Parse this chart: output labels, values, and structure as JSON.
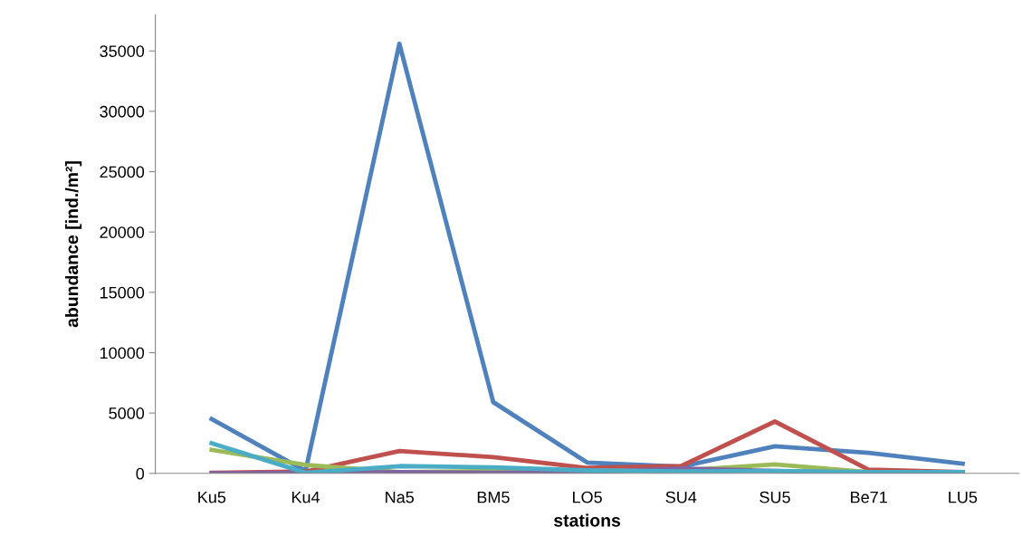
{
  "chart_data": {
    "type": "line",
    "xlabel": "stations",
    "ylabel": "abundance [ind./m²]",
    "categories": [
      "Ku5",
      "Ku4",
      "Na5",
      "BM5",
      "LO5",
      "SU4",
      "SU5",
      "Be71",
      "LU5"
    ],
    "series": [
      {
        "color": "#4f81bd",
        "values": [
          4500,
          200,
          35600,
          5900,
          900,
          550,
          2250,
          1700,
          800
        ]
      },
      {
        "color": "#c0504d",
        "values": [
          50,
          150,
          1850,
          1350,
          450,
          600,
          4300,
          300,
          100
        ]
      },
      {
        "color": "#9bbb59",
        "values": [
          1950,
          700,
          100,
          200,
          200,
          250,
          750,
          100,
          50
        ]
      },
      {
        "color": "#8064a2",
        "values": [
          0,
          50,
          100,
          50,
          100,
          400,
          200,
          50,
          50
        ]
      },
      {
        "color": "#4bacc6",
        "values": [
          2500,
          50,
          600,
          500,
          250,
          150,
          200,
          100,
          100
        ]
      }
    ],
    "ylim": [
      0,
      38000
    ],
    "yticks": [
      0,
      5000,
      10000,
      15000,
      20000,
      25000,
      30000,
      35000
    ],
    "grid": false,
    "marker": "none",
    "line_style": "solid"
  }
}
